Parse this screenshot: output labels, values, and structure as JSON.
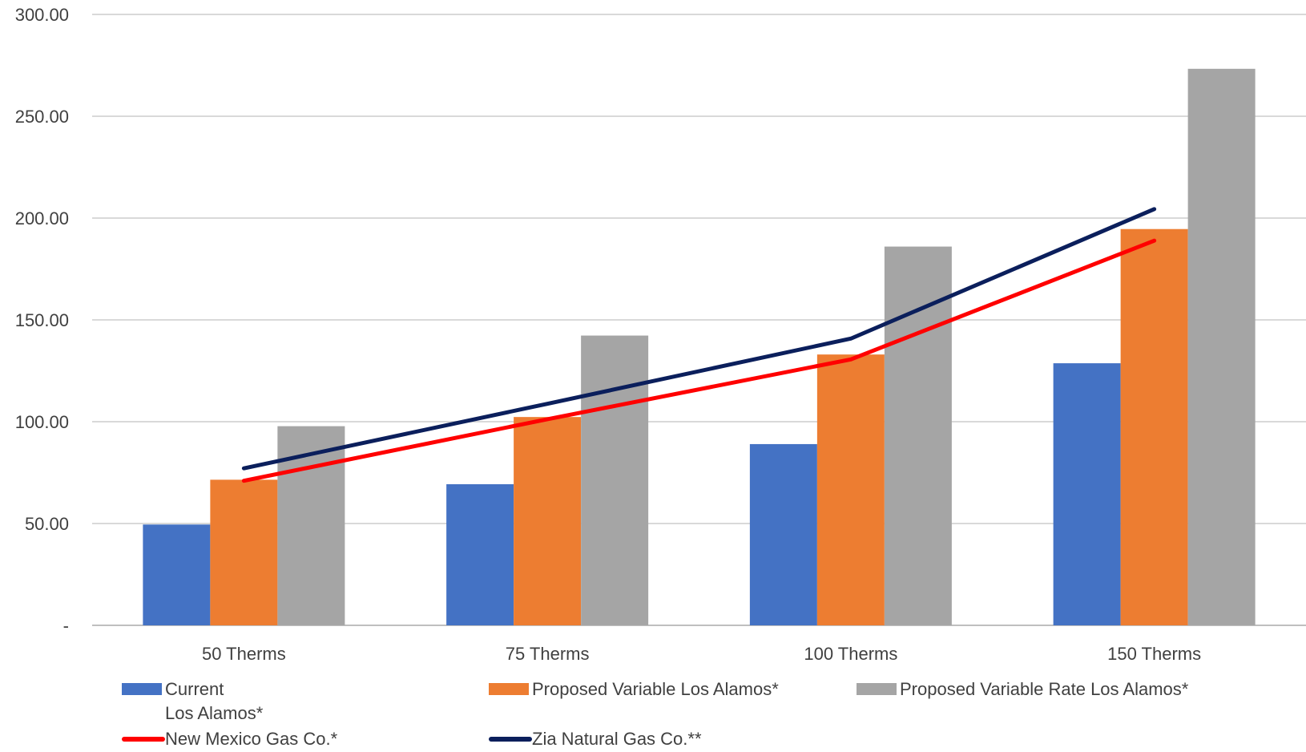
{
  "chart_data": {
    "type": "bar",
    "categories": [
      "50 Therms",
      "75 Therms",
      "100 Therms",
      "150 Therms"
    ],
    "ylim": [
      0,
      300
    ],
    "yticks": [
      {
        "value": 0,
        "label": "-"
      },
      {
        "value": 50,
        "label": "50.00"
      },
      {
        "value": 100,
        "label": "100.00"
      },
      {
        "value": 150,
        "label": "150.00"
      },
      {
        "value": 200,
        "label": "200.00"
      },
      {
        "value": 250,
        "label": "250.00"
      },
      {
        "value": 300,
        "label": "300.00"
      }
    ],
    "grid": true,
    "series": [
      {
        "name": "Current\nLos Alamos*",
        "kind": "bar",
        "color": "#4472C4",
        "values": [
          49.5,
          69.3,
          89.0,
          128.7
        ]
      },
      {
        "name": "Proposed Variable Los Alamos*",
        "kind": "bar",
        "color": "#ED7D31",
        "values": [
          71.5,
          102.3,
          133.0,
          194.6
        ]
      },
      {
        "name": "Proposed Variable Rate Los Alamos*",
        "kind": "bar",
        "color": "#A5A5A5",
        "values": [
          97.8,
          142.3,
          186.0,
          273.3
        ]
      },
      {
        "name": "New Mexico Gas Co.*",
        "kind": "line",
        "color": "#FF0000",
        "values": [
          71.0,
          101.2,
          130.6,
          188.9
        ]
      },
      {
        "name": "Zia Natural Gas Co.**",
        "kind": "line",
        "color": "#0B1F5C",
        "values": [
          77.1,
          108.8,
          140.8,
          204.4
        ]
      }
    ],
    "legend_position": "bottom"
  }
}
